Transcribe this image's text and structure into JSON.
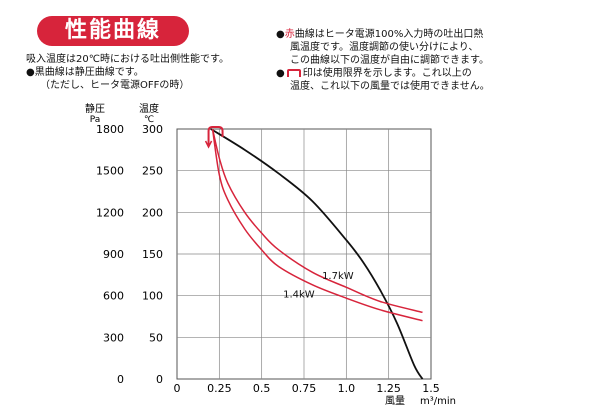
{
  "title": "性能曲線",
  "notes_left": {
    "line1": "吸入温度は20℃時における吐出側性能です。",
    "line2_bullet": "●",
    "line2": "黒曲線は静圧曲線です。",
    "line3": "（ただし、ヒータ電源OFFの時）"
  },
  "notes_right": {
    "line1_bullet": "●",
    "line1_red": "赤",
    "line1": "曲線はヒータ電源100%入力時の吐出口熱",
    "line2": "風温度です。温度調節の使い分けにより、",
    "line3": "この曲線以下の温度が自由に調節できます。",
    "line4_bullet": "●",
    "line4": "印は使用限界を示します。これ以上の",
    "line5": "温度、これ以下の風量では使用できません。"
  },
  "colors": {
    "badge": "#d7243b",
    "red_curve": "#d7243b",
    "black_curve": "#111111",
    "grid": "#888888"
  },
  "chart_data": {
    "type": "line",
    "xlabel": "風量",
    "xunit": "m³/min",
    "y_left_label": "静圧",
    "y_left_unit": "Pa",
    "y_right_label": "温度",
    "y_right_unit": "℃",
    "xlim": [
      0,
      1.5
    ],
    "y_left_lim": [
      0,
      1800
    ],
    "y_right_lim": [
      0,
      300
    ],
    "x_ticks": [
      "0",
      "0.25",
      "0.5",
      "0.75",
      "1.0",
      "1.25",
      "1.5"
    ],
    "x_tick_values": [
      0,
      0.25,
      0.5,
      0.75,
      1.0,
      1.25,
      1.5
    ],
    "y_left_ticks": [
      "0",
      "300",
      "600",
      "900",
      "1200",
      "1500",
      "1800"
    ],
    "y_right_ticks": [
      "0",
      "50",
      "100",
      "150",
      "200",
      "250",
      "300"
    ],
    "grid": true,
    "series": [
      {
        "axis": "left",
        "color": "#111111",
        "x": [
          0.2,
          0.4,
          0.6,
          0.8,
          1.0,
          1.1,
          1.2,
          1.3,
          1.4,
          1.45
        ],
        "y": [
          1800,
          1650,
          1480,
          1280,
          1000,
          840,
          640,
          400,
          100,
          0
        ]
      },
      {
        "name": "1.7kW",
        "axis": "right",
        "color": "#d7243b",
        "x": [
          0.21,
          0.25,
          0.3,
          0.4,
          0.5,
          0.6,
          0.8,
          1.0,
          1.2,
          1.45
        ],
        "y": [
          300,
          265,
          235,
          200,
          175,
          155,
          128,
          110,
          93,
          80
        ]
      },
      {
        "name": "1.4kW",
        "axis": "right",
        "color": "#d7243b",
        "x": [
          0.21,
          0.25,
          0.3,
          0.4,
          0.5,
          0.6,
          0.8,
          1.0,
          1.2,
          1.45
        ],
        "y": [
          300,
          245,
          215,
          180,
          155,
          135,
          113,
          97,
          83,
          70
        ]
      }
    ]
  }
}
